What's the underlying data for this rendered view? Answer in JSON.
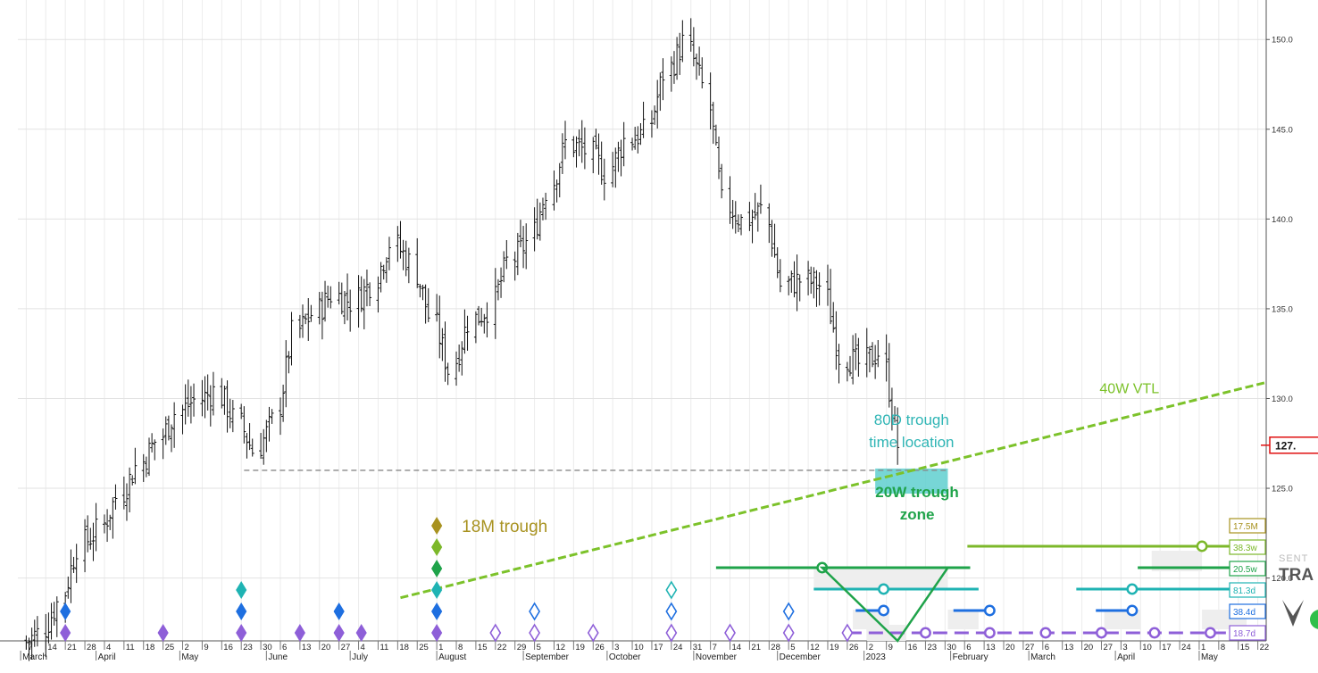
{
  "chart_data": {
    "type": "bar",
    "subtype": "daily_ohlc_with_cycle_overlays",
    "title": "",
    "xlabel": "",
    "ylabel": "",
    "grid": true,
    "y_ticks": [
      120,
      125,
      130,
      135,
      140,
      145,
      150
    ],
    "y_tick_labels": [
      "120.0",
      "125.0",
      "130.0",
      "135.0",
      "140.0",
      "145.0",
      "150.0"
    ],
    "ylim": [
      116.5,
      152.2
    ],
    "x_date_range": [
      "2022-03-04",
      "2023-05-25"
    ],
    "last_price_label": "127.",
    "last_price": 127.4,
    "price_series": [
      {
        "date": "2022-03-07",
        "close": 116.9
      },
      {
        "date": "2022-03-14",
        "close": 118.6
      },
      {
        "date": "2022-03-21",
        "close": 121.8
      },
      {
        "date": "2022-03-28",
        "close": 122.6
      },
      {
        "date": "2022-04-04",
        "close": 124.5
      },
      {
        "date": "2022-04-11",
        "close": 126.2
      },
      {
        "date": "2022-04-18",
        "close": 127.6
      },
      {
        "date": "2022-04-25",
        "close": 129.2
      },
      {
        "date": "2022-05-02",
        "close": 129.9
      },
      {
        "date": "2022-05-09",
        "close": 130.4
      },
      {
        "date": "2022-05-16",
        "close": 128.9
      },
      {
        "date": "2022-05-23",
        "close": 127.1
      },
      {
        "date": "2022-05-30",
        "close": 128.7
      },
      {
        "date": "2022-06-06",
        "close": 133.6
      },
      {
        "date": "2022-06-13",
        "close": 134.7
      },
      {
        "date": "2022-06-20",
        "close": 135.8
      },
      {
        "date": "2022-06-27",
        "close": 135.4
      },
      {
        "date": "2022-07-04",
        "close": 136.4
      },
      {
        "date": "2022-07-11",
        "close": 138.7
      },
      {
        "date": "2022-07-18",
        "close": 137.6
      },
      {
        "date": "2022-07-25",
        "close": 134.6
      },
      {
        "date": "2022-08-01",
        "close": 131.6
      },
      {
        "date": "2022-08-08",
        "close": 134.3
      },
      {
        "date": "2022-08-15",
        "close": 135.0
      },
      {
        "date": "2022-08-22",
        "close": 137.6
      },
      {
        "date": "2022-08-29",
        "close": 138.7
      },
      {
        "date": "2022-09-05",
        "close": 141.6
      },
      {
        "date": "2022-09-12",
        "close": 144.2
      },
      {
        "date": "2022-09-19",
        "close": 143.8
      },
      {
        "date": "2022-09-26",
        "close": 142.6
      },
      {
        "date": "2022-10-03",
        "close": 144.4
      },
      {
        "date": "2022-10-10",
        "close": 144.8
      },
      {
        "date": "2022-10-17",
        "close": 148.1
      },
      {
        "date": "2022-10-24",
        "close": 149.8
      },
      {
        "date": "2022-10-31",
        "close": 147.4
      },
      {
        "date": "2022-11-07",
        "close": 140.9
      },
      {
        "date": "2022-11-14",
        "close": 139.9
      },
      {
        "date": "2022-11-21",
        "close": 140.5
      },
      {
        "date": "2022-11-28",
        "close": 136.3
      },
      {
        "date": "2022-12-05",
        "close": 136.6
      },
      {
        "date": "2022-12-12",
        "close": 136.3
      },
      {
        "date": "2022-12-19",
        "close": 132.4
      },
      {
        "date": "2022-12-26",
        "close": 131.9
      },
      {
        "date": "2023-01-02",
        "close": 132.6
      },
      {
        "date": "2023-01-09",
        "close": 127.4
      }
    ],
    "reference_lines": [
      {
        "type": "horizontal_dashed",
        "from": "2022-05-24",
        "to": "2023-01-31",
        "y": 126.0
      },
      {
        "name": "40W VTL",
        "type": "dashed_trendline",
        "x0": "2022-07-19",
        "y0": 118.9,
        "x1": "2023-05-25",
        "y1": 130.9
      }
    ],
    "annotations": [
      {
        "text": "40W VTL"
      },
      {
        "text": "80D trough time location",
        "lines": [
          "80D trough",
          "time location"
        ],
        "x_range": [
          "2023-01-05",
          "2023-01-31"
        ],
        "y_range": [
          124.7,
          126.1
        ]
      },
      {
        "text": "20W trough zone",
        "lines": [
          "20W trough",
          "zone"
        ]
      },
      {
        "text": "18M trough",
        "date": "2022-08-01"
      }
    ],
    "cycle_badges": [
      {
        "label": "17.5M",
        "color": "#a89220"
      },
      {
        "label": "38.3w",
        "color": "#7cb82a"
      },
      {
        "label": "20.5w",
        "color": "#1fa34a"
      },
      {
        "label": "81.3d",
        "color": "#1fb3b3"
      },
      {
        "label": "38.4d",
        "color": "#1e6fe0"
      },
      {
        "label": "18.7d",
        "color": "#8e5fd8"
      }
    ],
    "x_day_ticks": [
      {
        "date": "2022-03-07",
        "label": "7"
      },
      {
        "date": "2022-03-14",
        "label": "14"
      },
      {
        "date": "2022-03-21",
        "label": "21"
      },
      {
        "date": "2022-03-28",
        "label": "28"
      },
      {
        "date": "2022-04-04",
        "label": "4"
      },
      {
        "date": "2022-04-11",
        "label": "11"
      },
      {
        "date": "2022-04-18",
        "label": "18"
      },
      {
        "date": "2022-04-25",
        "label": "25"
      },
      {
        "date": "2022-05-02",
        "label": "2"
      },
      {
        "date": "2022-05-09",
        "label": "9"
      },
      {
        "date": "2022-05-16",
        "label": "16"
      },
      {
        "date": "2022-05-23",
        "label": "23"
      },
      {
        "date": "2022-05-30",
        "label": "30"
      },
      {
        "date": "2022-06-06",
        "label": "6"
      },
      {
        "date": "2022-06-13",
        "label": "13"
      },
      {
        "date": "2022-06-20",
        "label": "20"
      },
      {
        "date": "2022-06-27",
        "label": "27"
      },
      {
        "date": "2022-07-04",
        "label": "4"
      },
      {
        "date": "2022-07-11",
        "label": "11"
      },
      {
        "date": "2022-07-18",
        "label": "18"
      },
      {
        "date": "2022-07-25",
        "label": "25"
      },
      {
        "date": "2022-08-01",
        "label": "1"
      },
      {
        "date": "2022-08-08",
        "label": "8"
      },
      {
        "date": "2022-08-15",
        "label": "15"
      },
      {
        "date": "2022-08-22",
        "label": "22"
      },
      {
        "date": "2022-08-29",
        "label": "29"
      },
      {
        "date": "2022-09-05",
        "label": "5"
      },
      {
        "date": "2022-09-12",
        "label": "12"
      },
      {
        "date": "2022-09-19",
        "label": "19"
      },
      {
        "date": "2022-09-26",
        "label": "26"
      },
      {
        "date": "2022-10-03",
        "label": "3"
      },
      {
        "date": "2022-10-10",
        "label": "10"
      },
      {
        "date": "2022-10-17",
        "label": "17"
      },
      {
        "date": "2022-10-24",
        "label": "24"
      },
      {
        "date": "2022-10-31",
        "label": "31"
      },
      {
        "date": "2022-11-07",
        "label": "7"
      },
      {
        "date": "2022-11-14",
        "label": "14"
      },
      {
        "date": "2022-11-21",
        "label": "21"
      },
      {
        "date": "2022-11-28",
        "label": "28"
      },
      {
        "date": "2022-12-05",
        "label": "5"
      },
      {
        "date": "2022-12-12",
        "label": "12"
      },
      {
        "date": "2022-12-19",
        "label": "19"
      },
      {
        "date": "2022-12-26",
        "label": "26"
      },
      {
        "date": "2023-01-02",
        "label": "2"
      },
      {
        "date": "2023-01-09",
        "label": "9"
      },
      {
        "date": "2023-01-16",
        "label": "16"
      },
      {
        "date": "2023-01-23",
        "label": "23"
      },
      {
        "date": "2023-01-30",
        "label": "30"
      },
      {
        "date": "2023-02-06",
        "label": "6"
      },
      {
        "date": "2023-02-13",
        "label": "13"
      },
      {
        "date": "2023-02-20",
        "label": "20"
      },
      {
        "date": "2023-02-27",
        "label": "27"
      },
      {
        "date": "2023-03-06",
        "label": "6"
      },
      {
        "date": "2023-03-13",
        "label": "13"
      },
      {
        "date": "2023-03-20",
        "label": "20"
      },
      {
        "date": "2023-03-27",
        "label": "27"
      },
      {
        "date": "2023-04-03",
        "label": "3"
      },
      {
        "date": "2023-04-10",
        "label": "10"
      },
      {
        "date": "2023-04-17",
        "label": "17"
      },
      {
        "date": "2023-04-24",
        "label": "24"
      },
      {
        "date": "2023-05-01",
        "label": "1"
      },
      {
        "date": "2023-05-08",
        "label": "8"
      },
      {
        "date": "2023-05-15",
        "label": "15"
      },
      {
        "date": "2023-05-22",
        "label": "22"
      }
    ],
    "x_month_labels": [
      {
        "date": "2022-03-05",
        "label": "March"
      },
      {
        "date": "2022-04-01",
        "label": "April"
      },
      {
        "date": "2022-05-01",
        "label": "May"
      },
      {
        "date": "2022-06-01",
        "label": "June"
      },
      {
        "date": "2022-07-01",
        "label": "July"
      },
      {
        "date": "2022-08-01",
        "label": "August"
      },
      {
        "date": "2022-09-01",
        "label": "September"
      },
      {
        "date": "2022-10-01",
        "label": "October"
      },
      {
        "date": "2022-11-01",
        "label": "November"
      },
      {
        "date": "2022-12-01",
        "label": "December"
      },
      {
        "date": "2023-01-01",
        "label": "2023"
      },
      {
        "date": "2023-02-01",
        "label": "February"
      },
      {
        "date": "2023-03-01",
        "label": "March"
      },
      {
        "date": "2023-04-01",
        "label": "April"
      },
      {
        "date": "2023-05-01",
        "label": "May"
      }
    ],
    "watermark": {
      "text_top": "SENT",
      "text_bottom": "TRA"
    }
  }
}
